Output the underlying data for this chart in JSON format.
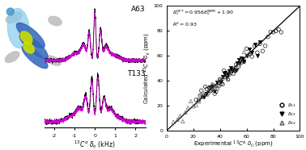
{
  "equation_text_line1": "$\\delta_{ii}^{DFT}= 0.956\\delta_{ii}^{NMR}+1.90$",
  "r2_text": "$R^2=0.93$",
  "xlabel_scatter": "Experimental $^{13}C^{\\alpha}$ $\\delta_{ii}$ (ppm)",
  "ylabel_scatter": "Calculated $^{13}C^{\\alpha}$ $\\delta_{ii}$ (ppm)",
  "xlabel_spectra": "$^{13}C^{\\alpha}$ $\\delta_{o}$ (kHz)",
  "xlim_scatter": [
    0,
    100
  ],
  "ylim_scatter": [
    0,
    100
  ],
  "xticks_scatter": [
    0,
    20,
    40,
    60,
    80,
    100
  ],
  "yticks_scatter": [
    0,
    20,
    40,
    60,
    80,
    100
  ],
  "label_A63": "A63",
  "label_T133": "T133",
  "legend_labels": [
    "$\\delta_{11}$",
    "$\\delta_{22}$",
    "$\\delta_{33}$"
  ],
  "spectra_black": "black",
  "spectra_magenta": "#CC00CC",
  "d11_x": [
    22,
    24,
    25,
    26,
    27,
    28,
    29,
    30,
    31,
    32,
    33,
    34,
    35,
    36,
    37,
    38,
    39,
    40,
    41,
    42,
    43,
    44,
    45,
    46,
    47,
    48,
    50,
    52,
    54,
    56,
    58,
    60,
    62,
    64,
    66,
    68,
    70,
    72,
    74,
    76,
    78,
    80,
    82,
    84,
    86
  ],
  "d22_x": [
    28,
    30,
    32,
    34,
    36,
    38,
    40,
    41,
    42,
    43,
    44,
    45,
    46,
    47,
    48,
    49,
    50,
    51,
    52,
    53,
    54,
    55,
    56,
    57,
    58,
    60,
    62,
    64,
    66,
    68,
    70
  ],
  "d33_x": [
    5,
    8,
    10,
    12,
    14,
    16,
    18,
    20,
    22,
    24,
    26,
    28,
    30,
    32,
    33,
    34,
    35,
    36,
    37,
    38,
    39,
    40,
    42,
    44,
    46,
    48,
    50,
    52,
    54,
    56,
    58,
    60,
    62
  ]
}
